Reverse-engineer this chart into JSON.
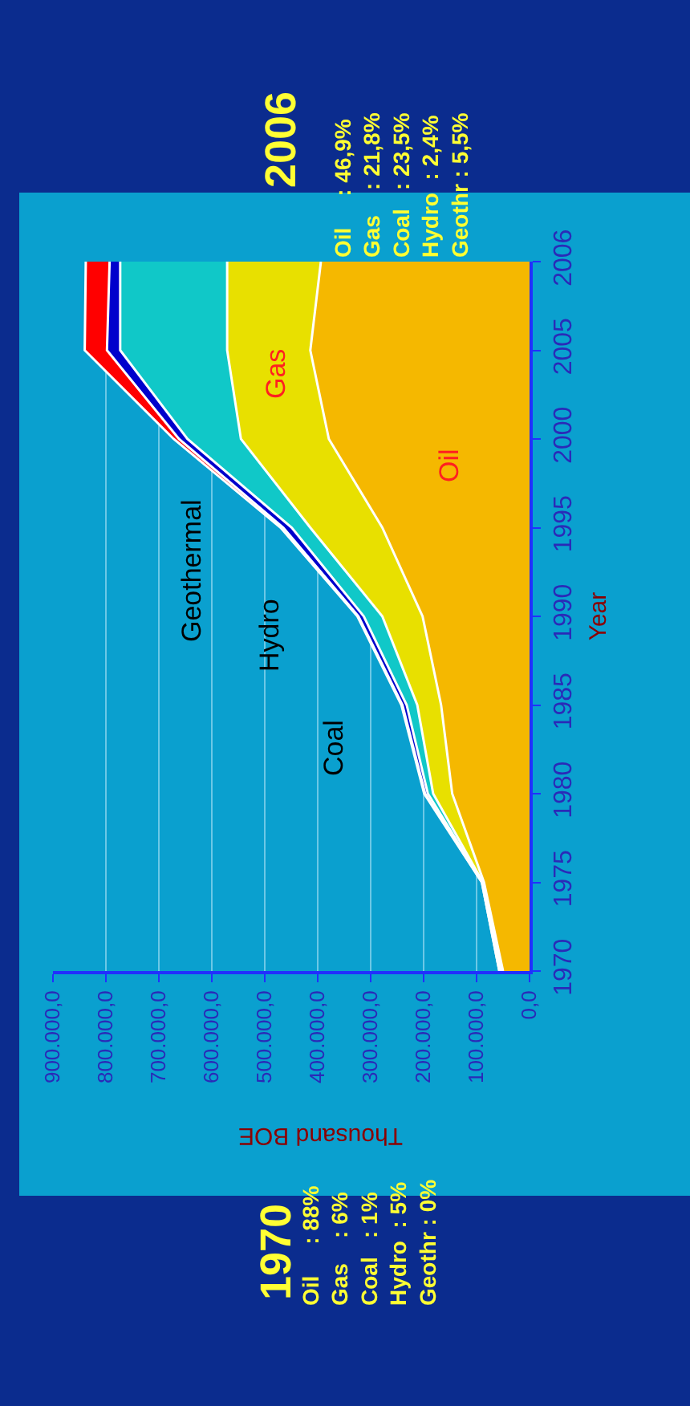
{
  "chart_data": {
    "type": "area",
    "stacked": true,
    "orientation": "horizontal",
    "xlabel": "Thousand BOE",
    "ylabel": "Year",
    "categories": [
      "2006",
      "2005",
      "2000",
      "1995",
      "1990",
      "1985",
      "1980",
      "1975",
      "1970"
    ],
    "series": [
      {
        "name": "Oil",
        "color": "#f5b800",
        "values": [
          394000,
          414000,
          379000,
          278000,
          202000,
          167000,
          146000,
          86000,
          50000
        ]
      },
      {
        "name": "Gas",
        "color": "#e8e000",
        "values": [
          177000,
          157000,
          166000,
          136000,
          76000,
          45000,
          36000,
          2000,
          3000
        ]
      },
      {
        "name": "Coal",
        "color": "#10c8c8",
        "values": [
          202000,
          202000,
          101000,
          35000,
          35000,
          20000,
          10000,
          1000,
          1000
        ]
      },
      {
        "name": "Hydro",
        "color": "#0000cc",
        "values": [
          20000,
          25000,
          16000,
          16000,
          10000,
          8000,
          5000,
          1000,
          3000
        ]
      },
      {
        "name": "Geothermal",
        "color": "#ff0000",
        "values": [
          45000,
          42000,
          10000,
          5000,
          2000,
          2000,
          2000,
          0,
          0
        ]
      }
    ],
    "xlim": [
      900000,
      0
    ],
    "xticks": [
      {
        "value": 900000,
        "label": "900.000,0"
      },
      {
        "value": 800000,
        "label": "800.000,0"
      },
      {
        "value": 700000,
        "label": "700.000,0"
      },
      {
        "value": 600000,
        "label": "600.000,0"
      },
      {
        "value": 500000,
        "label": "500.000,0"
      },
      {
        "value": 400000,
        "label": "400.000,0"
      },
      {
        "value": 300000,
        "label": "300.000,0"
      },
      {
        "value": 200000,
        "label": "200.000,0"
      },
      {
        "value": 100000,
        "label": "100.000,0"
      },
      {
        "value": 0,
        "label": "0,0"
      }
    ],
    "grid": "x",
    "annotations": [
      "2006",
      "Oil     : 46,9%\nGas    : 21,8%\nCoal   : 23,5%\nHydro  : 2,4%\nGeothr : 5,5%",
      "1970",
      "Oil     : 88%\nGas    : 6%\nCoal   : 1%\nHydro  : 5%\nGeothr : 0%"
    ]
  }
}
